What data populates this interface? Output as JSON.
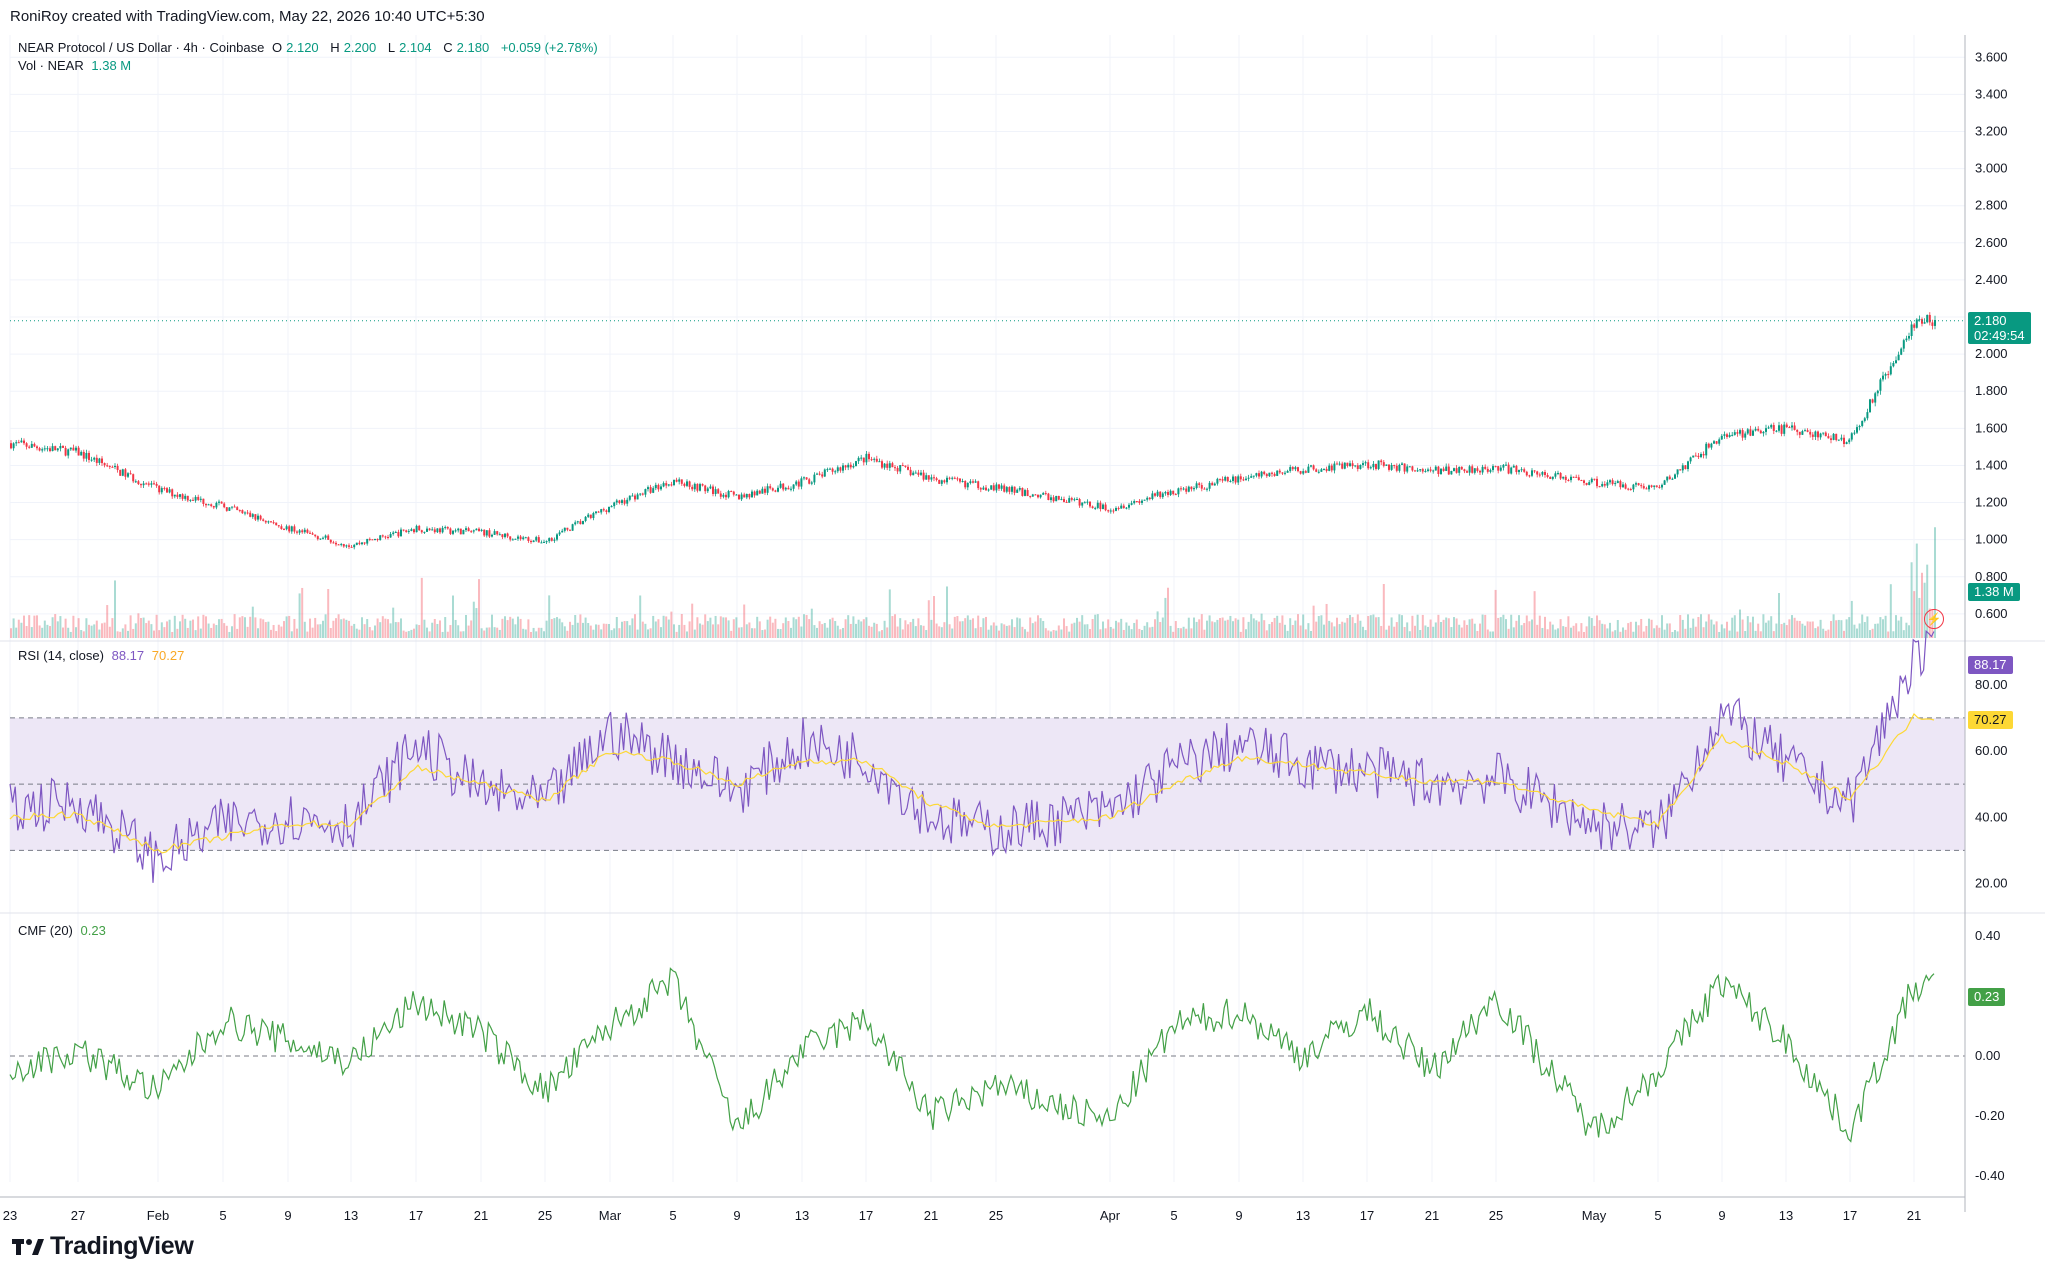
{
  "header": {
    "credit": "RoniRoy created with TradingView.com, May 22, 2026 10:40 UTC+5:30"
  },
  "legend": {
    "symbol": "NEAR Protocol / US Dollar · 4h · Coinbase",
    "open_label": "O",
    "open": "2.120",
    "high_label": "H",
    "high": "2.200",
    "low_label": "L",
    "low": "2.104",
    "close_label": "C",
    "close": "2.180",
    "change": "+0.059 (+2.78%)",
    "vol_label": "Vol · NEAR",
    "vol_value": "1.38 M"
  },
  "rsi_legend": {
    "label": "RSI (14, close)",
    "value": "88.17",
    "ma_value": "70.27"
  },
  "cmf_legend": {
    "label": "CMF (20)",
    "value": "0.23"
  },
  "tags": {
    "price": "2.180",
    "countdown": "02:49:54",
    "volume": "1.38 M",
    "rsi": "88.17",
    "rsi_ma": "70.27",
    "cmf": "0.23"
  },
  "brand": {
    "name": "TradingView"
  },
  "colors": {
    "up": "#089981",
    "down": "#f23645",
    "rsi": "#7e57c2",
    "rsi_ma": "#fdd835",
    "cmf": "#43a047",
    "rsi_band": "#ede7f6"
  },
  "chart_data": [
    {
      "type": "candlestick",
      "timeframe": "4h",
      "x_ticks": [
        "23",
        "27",
        "Feb",
        "5",
        "9",
        "13",
        "17",
        "21",
        "25",
        "Mar",
        "5",
        "9",
        "13",
        "17",
        "21",
        "25",
        "Apr",
        "5",
        "9",
        "13",
        "17",
        "21",
        "25",
        "May",
        "5",
        "9",
        "13",
        "17",
        "21"
      ],
      "y_ticks": [
        "3.600",
        "3.400",
        "3.200",
        "3.000",
        "2.800",
        "2.600",
        "2.400",
        "2.200",
        "2.000",
        "1.800",
        "1.600",
        "1.400",
        "1.200",
        "1.000",
        "0.800",
        "0.600"
      ],
      "ylim": [
        0.47,
        3.72
      ],
      "last_price": 2.18,
      "price_path": [
        [
          "23",
          1.52
        ],
        [
          "27",
          1.47
        ],
        [
          "Feb",
          1.27
        ],
        [
          "5",
          1.18
        ],
        [
          "9",
          1.06
        ],
        [
          "13",
          0.97
        ],
        [
          "17",
          1.06
        ],
        [
          "21",
          1.04
        ],
        [
          "25",
          0.99
        ],
        [
          "Mar",
          1.18
        ],
        [
          "5",
          1.32
        ],
        [
          "9",
          1.23
        ],
        [
          "13",
          1.31
        ],
        [
          "17",
          1.44
        ],
        [
          "21",
          1.33
        ],
        [
          "25",
          1.28
        ],
        [
          "Apr",
          1.17
        ],
        [
          "5",
          1.26
        ],
        [
          "9",
          1.33
        ],
        [
          "13",
          1.38
        ],
        [
          "17",
          1.41
        ],
        [
          "21",
          1.37
        ],
        [
          "25",
          1.39
        ],
        [
          "May",
          1.31
        ],
        [
          "5",
          1.28
        ],
        [
          "9",
          1.56
        ],
        [
          "13",
          1.6
        ],
        [
          "17",
          1.53
        ],
        [
          "21",
          2.18
        ]
      ],
      "volume_last": "1.38 M"
    },
    {
      "type": "line",
      "name": "RSI (14, close)",
      "y_ticks": [
        "80.00",
        "60.00",
        "40.00",
        "20.00"
      ],
      "ylim": [
        12,
        92
      ],
      "bands": [
        30,
        50,
        70
      ],
      "series": [
        {
          "name": "RSI",
          "path": [
            [
              "23",
              42
            ],
            [
              "27",
              45
            ],
            [
              "Feb",
              27
            ],
            [
              "5",
              38
            ],
            [
              "9",
              40
            ],
            [
              "13",
              38
            ],
            [
              "17",
              62
            ],
            [
              "21",
              48
            ],
            [
              "25",
              44
            ],
            [
              "Mar",
              66
            ],
            [
              "5",
              58
            ],
            [
              "9",
              48
            ],
            [
              "13",
              62
            ],
            [
              "17",
              58
            ],
            [
              "21",
              40
            ],
            [
              "25",
              36
            ],
            [
              "Apr",
              42
            ],
            [
              "5",
              55
            ],
            [
              "9",
              62
            ],
            [
              "13",
              56
            ],
            [
              "17",
              54
            ],
            [
              "21",
              50
            ],
            [
              "25",
              52
            ],
            [
              "May",
              38
            ],
            [
              "5",
              36
            ],
            [
              "9",
              72
            ],
            [
              "13",
              56
            ],
            [
              "17",
              44
            ],
            [
              "21",
              88.17
            ]
          ]
        },
        {
          "name": "RSI-based MA",
          "path": [
            [
              "23",
              40
            ],
            [
              "27",
              41
            ],
            [
              "Feb",
              30
            ],
            [
              "5",
              34
            ],
            [
              "9",
              38
            ],
            [
              "13",
              38
            ],
            [
              "17",
              55
            ],
            [
              "21",
              50
            ],
            [
              "25",
              45
            ],
            [
              "Mar",
              60
            ],
            [
              "5",
              57
            ],
            [
              "9",
              50
            ],
            [
              "13",
              57
            ],
            [
              "17",
              57
            ],
            [
              "21",
              44
            ],
            [
              "25",
              37
            ],
            [
              "Apr",
              40
            ],
            [
              "5",
              50
            ],
            [
              "9",
              58
            ],
            [
              "13",
              56
            ],
            [
              "17",
              53
            ],
            [
              "21",
              51
            ],
            [
              "25",
              51
            ],
            [
              "May",
              42
            ],
            [
              "5",
              38
            ],
            [
              "9",
              64
            ],
            [
              "13",
              56
            ],
            [
              "17",
              46
            ],
            [
              "21",
              70.27
            ]
          ]
        }
      ]
    },
    {
      "type": "line",
      "name": "CMF (20)",
      "y_ticks": [
        "0.40",
        "0.20",
        "0.00",
        "-0.20",
        "-0.40"
      ],
      "ylim": [
        -0.42,
        0.47
      ],
      "series": [
        {
          "name": "CMF",
          "path": [
            [
              "23",
              -0.05
            ],
            [
              "27",
              0.02
            ],
            [
              "Feb",
              -0.12
            ],
            [
              "5",
              0.12
            ],
            [
              "9",
              0.05
            ],
            [
              "13",
              -0.02
            ],
            [
              "17",
              0.18
            ],
            [
              "21",
              0.08
            ],
            [
              "25",
              -0.12
            ],
            [
              "Mar",
              0.1
            ],
            [
              "5",
              0.25
            ],
            [
              "9",
              -0.25
            ],
            [
              "13",
              0.02
            ],
            [
              "17",
              0.12
            ],
            [
              "21",
              -0.2
            ],
            [
              "25",
              -0.1
            ],
            [
              "Apr",
              -0.22
            ],
            [
              "5",
              0.1
            ],
            [
              "9",
              0.15
            ],
            [
              "13",
              0.0
            ],
            [
              "17",
              0.15
            ],
            [
              "21",
              -0.05
            ],
            [
              "25",
              0.2
            ],
            [
              "May",
              -0.25
            ],
            [
              "5",
              -0.05
            ],
            [
              "9",
              0.25
            ],
            [
              "13",
              0.05
            ],
            [
              "17",
              -0.25
            ],
            [
              "21",
              0.23
            ]
          ]
        }
      ]
    }
  ]
}
